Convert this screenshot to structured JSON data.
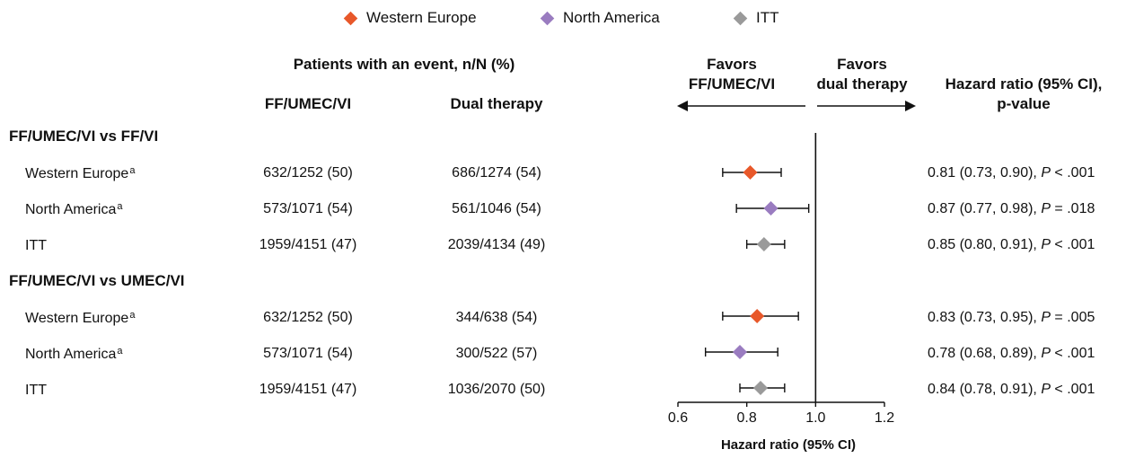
{
  "legend": [
    {
      "label": "Western Europe",
      "color": "#E8582A"
    },
    {
      "label": "North America",
      "color": "#9A7CC0"
    },
    {
      "label": "ITT",
      "color": "#9A9A9A"
    }
  ],
  "headers": {
    "patients": "Patients with an event, n/N (%)",
    "col1": "FF/UMEC/VI",
    "col2": "Dual therapy",
    "favors_left_1": "Favors",
    "favors_left_2": "FF/UMEC/VI",
    "favors_right_1": "Favors",
    "favors_right_2": "dual therapy",
    "hr_1": "Hazard ratio (95% CI),",
    "hr_2": "p-value"
  },
  "groups": [
    {
      "title": "FF/UMEC/VI vs FF/VI",
      "rows": [
        {
          "label": "Western Europe",
          "sup": "a",
          "col1": "632/1252 (50)",
          "col2": "686/1274 (54)",
          "hr_text": "0.81 (0.73, 0.90), ",
          "p_label": "P",
          "p_text": " < .001"
        },
        {
          "label": "North America",
          "sup": "a",
          "col1": "573/1071 (54)",
          "col2": "561/1046 (54)",
          "hr_text": "0.87 (0.77, 0.98), ",
          "p_label": "P",
          "p_text": " = .018"
        },
        {
          "label": "ITT",
          "sup": "",
          "col1": "1959/4151 (47)",
          "col2": "2039/4134 (49)",
          "hr_text": "0.85 (0.80, 0.91), ",
          "p_label": "P",
          "p_text": " < .001"
        }
      ]
    },
    {
      "title": "FF/UMEC/VI vs UMEC/VI",
      "rows": [
        {
          "label": "Western Europe",
          "sup": "a",
          "col1": "632/1252 (50)",
          "col2": "344/638 (54)",
          "hr_text": "0.83 (0.73, 0.95), ",
          "p_label": "P",
          "p_text": " = .005"
        },
        {
          "label": "North America",
          "sup": "a",
          "col1": "573/1071 (54)",
          "col2": "300/522 (57)",
          "hr_text": "0.78 (0.68, 0.89), ",
          "p_label": "P",
          "p_text": " < .001"
        },
        {
          "label": "ITT",
          "sup": "",
          "col1": "1959/4151 (47)",
          "col2": "1036/2070 (50)",
          "hr_text": "0.84 (0.78, 0.91), ",
          "p_label": "P",
          "p_text": " < .001"
        }
      ]
    }
  ],
  "chart_data": {
    "type": "forest",
    "xlabel": "Hazard ratio (95% CI)",
    "xlim": [
      0.6,
      1.2
    ],
    "xticks": [
      "0.6",
      "0.8",
      "1.0",
      "1.2"
    ],
    "reference_line": 1.0,
    "series": [
      {
        "name": "Western Europe",
        "color": "#E8582A"
      },
      {
        "name": "North America",
        "color": "#9A7CC0"
      },
      {
        "name": "ITT",
        "color": "#9A9A9A"
      }
    ],
    "points": [
      {
        "group": "FF/UMEC/VI vs FF/VI",
        "series": "Western Europe",
        "hr": 0.81,
        "lo": 0.73,
        "hi": 0.9
      },
      {
        "group": "FF/UMEC/VI vs FF/VI",
        "series": "North America",
        "hr": 0.87,
        "lo": 0.77,
        "hi": 0.98
      },
      {
        "group": "FF/UMEC/VI vs FF/VI",
        "series": "ITT",
        "hr": 0.85,
        "lo": 0.8,
        "hi": 0.91
      },
      {
        "group": "FF/UMEC/VI vs UMEC/VI",
        "series": "Western Europe",
        "hr": 0.83,
        "lo": 0.73,
        "hi": 0.95
      },
      {
        "group": "FF/UMEC/VI vs UMEC/VI",
        "series": "North America",
        "hr": 0.78,
        "lo": 0.68,
        "hi": 0.89
      },
      {
        "group": "FF/UMEC/VI vs UMEC/VI",
        "series": "ITT",
        "hr": 0.84,
        "lo": 0.78,
        "hi": 0.91
      }
    ]
  }
}
